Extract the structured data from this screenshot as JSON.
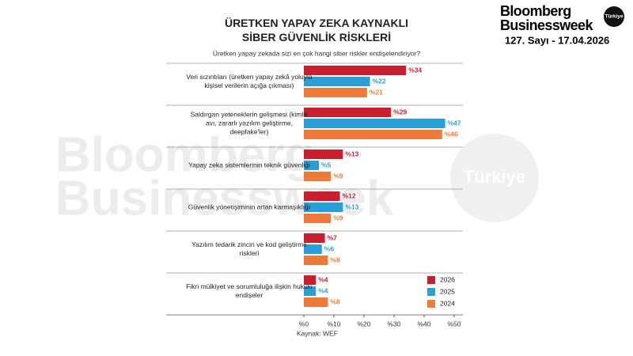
{
  "brand": {
    "name_line1": "Bloomberg",
    "name_line2": "Businessweek",
    "badge": "Türkiye",
    "issue": "127. Sayı - 17.04.2026"
  },
  "chart_data": {
    "type": "bar",
    "orientation": "horizontal",
    "title": "ÜRETKEN YAPAY ZEKA KAYNAKLI SİBER GÜVENLİK RİSKLERİ",
    "subtitle": "Üretken yapay zekada sizi en çok hangi siber riskler endişelendiriyor?",
    "source": "Kaynak: WEF",
    "categories": [
      "Veri sızıntıları (üretken yapay zekâ yoluyla kişisel verilerin açığa çıkması)",
      "Saldırgan yeteneklerin gelişmesi (kimlik avı, zararlı yazılım geliştirme, deepfake'ler)",
      "Yapay zeka sistemlerinin teknik güvenliği",
      "Güvenlik yönetişiminin artan karmaşıklığı",
      "Yazılım tedarik zinciri ve kod geliştirme riskleri",
      "Fikri mülkiyet ve sorumluluğa ilişkin hukuki endişeler"
    ],
    "series": [
      {
        "name": "2026",
        "color": "#c8202f",
        "values": [
          34,
          29,
          13,
          12,
          7,
          4
        ],
        "value_labels": [
          "%34",
          "%29",
          "%13",
          "%12",
          "%7",
          "%4"
        ]
      },
      {
        "name": "2025",
        "color": "#2a9fd6",
        "values": [
          22,
          47,
          5,
          13,
          6,
          4
        ],
        "value_labels": [
          "%22",
          "%47",
          "%5",
          "%13",
          "%6",
          "%4"
        ]
      },
      {
        "name": "2024",
        "color": "#ee7a3a",
        "values": [
          21,
          46,
          9,
          9,
          8,
          8
        ],
        "value_labels": [
          "%21",
          "%46",
          "%9",
          "%9",
          "%8",
          "%8"
        ]
      }
    ],
    "xlim": [
      0,
      50
    ],
    "xticks": [
      {
        "value": 0,
        "label": "%0"
      },
      {
        "value": 10,
        "label": "%10"
      },
      {
        "value": 20,
        "label": "%20"
      },
      {
        "value": 30,
        "label": "%30"
      },
      {
        "value": 40,
        "label": "%40"
      },
      {
        "value": 50,
        "label": "%50"
      }
    ],
    "legend": "lower right"
  }
}
